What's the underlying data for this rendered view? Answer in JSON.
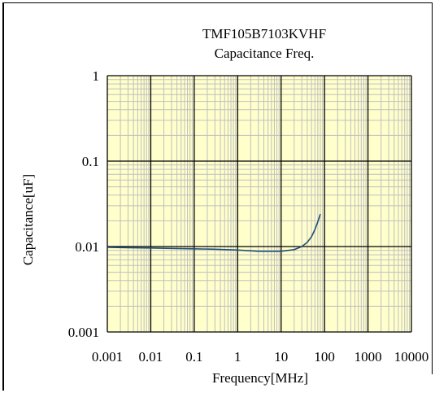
{
  "chart_data": {
    "type": "line",
    "title": "TMF105B7103KVHF",
    "subtitle": "Capacitance Freq.",
    "xlabel": "Frequency[MHz]",
    "ylabel": "Capacitance[uF]",
    "xscale": "log",
    "yscale": "log",
    "xlim": [
      0.001,
      10000
    ],
    "ylim": [
      0.001,
      1
    ],
    "grid": true,
    "legend": "none",
    "x_ticks": [
      "0.001",
      "0.01",
      "0.1",
      "1",
      "10",
      "100",
      "1000",
      "10000"
    ],
    "y_ticks": [
      "0.001",
      "0.01",
      "0.1",
      "1"
    ],
    "colors": {
      "plot_background": "#ffffcc",
      "line": "#1f4e79",
      "minor_grid": "#bfbfbf",
      "major_grid": "#000000"
    },
    "series": [
      {
        "x": [
          0.001,
          0.003,
          0.01,
          0.03,
          0.1,
          0.3,
          1,
          3,
          10,
          20,
          30,
          40,
          50,
          60,
          70,
          80
        ],
        "values": [
          0.0098,
          0.0097,
          0.0096,
          0.0095,
          0.0094,
          0.0093,
          0.0091,
          0.0088,
          0.0088,
          0.0092,
          0.01,
          0.0112,
          0.013,
          0.0158,
          0.0195,
          0.024
        ]
      }
    ]
  }
}
